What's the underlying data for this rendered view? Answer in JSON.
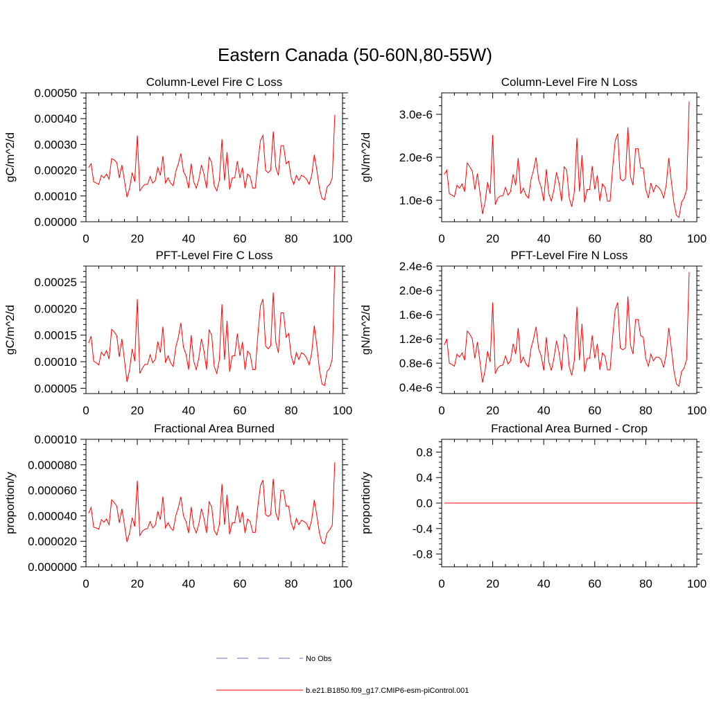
{
  "title": "Eastern Canada (50-60N,80-55W)",
  "legend": {
    "entries": [
      {
        "label": "No Obs",
        "color": "#6b6bc8",
        "style": "dashed"
      },
      {
        "label": "b.e21.B1850.f09_g17.CMIP6-esm-piControl.001",
        "color": "#ff0000",
        "style": "solid"
      }
    ]
  },
  "chart_data": [
    {
      "type": "line",
      "title": "Column-Level Fire C Loss",
      "ylabel": "gC/m^2/d",
      "xlim": [
        0,
        100
      ],
      "ylim": [
        0,
        0.0005
      ],
      "xticks": [
        0,
        20,
        40,
        60,
        80,
        100
      ],
      "yticks": [
        0,
        0.0001,
        0.0002,
        0.0003,
        0.0004,
        0.0005
      ],
      "ytick_labels": [
        "0.00000",
        "0.00010",
        "0.00020",
        "0.00030",
        "0.00040",
        "0.00050"
      ],
      "series": [
        {
          "color": "#ff0000",
          "x_start": 1,
          "values": [
            0.00021,
            0.000225,
            0.000155,
            0.00015,
            0.000145,
            0.00018,
            0.00017,
            0.000185,
            0.000165,
            0.000245,
            0.00024,
            0.00023,
            0.00017,
            0.00022,
            0.00016,
            9.5e-05,
            0.00013,
            0.00019,
            0.000155,
            0.000335,
            0.00012,
            0.000135,
            0.000145,
            0.000145,
            0.000175,
            0.00015,
            0.00016,
            0.00021,
            0.00018,
            0.000255,
            0.00015,
            0.00017,
            0.00015,
            0.00014,
            0.000195,
            0.000225,
            0.000265,
            0.000195,
            0.000175,
            0.00013,
            0.000225,
            0.000155,
            0.00013,
            0.000165,
            0.00022,
            0.000185,
            0.00013,
            0.00025,
            0.00023,
            0.00014,
            0.00012,
            0.00016,
            0.00032,
            0.00016,
            0.00027,
            0.000125,
            0.00017,
            0.00017,
            0.000235,
            0.00017,
            0.00021,
            0.00013,
            0.000185,
            0.000175,
            0.00013,
            0.00013,
            0.00023,
            0.000315,
            0.000335,
            0.0002,
            0.00019,
            0.0002,
            0.00035,
            0.00021,
            0.00018,
            0.000295,
            0.000295,
            0.000225,
            0.000235,
            0.00017,
            0.000145,
            0.00018,
            0.00016,
            0.00018,
            0.000175,
            0.000165,
            0.000145,
            0.00018,
            0.00026,
            0.0002,
            0.00013,
            9e-05,
            8.5e-05,
            0.000135,
            0.000145,
            0.00017,
            0.000415
          ]
        }
      ]
    },
    {
      "type": "line",
      "title": "Column-Level Fire N Loss",
      "ylabel": "gN/m^2/d",
      "xlim": [
        0,
        100
      ],
      "ylim": [
        5e-07,
        3.5e-06
      ],
      "xticks": [
        0,
        20,
        40,
        60,
        80,
        100
      ],
      "yticks": [
        1e-06,
        2e-06,
        3e-06
      ],
      "ytick_labels": [
        "1.0e-6",
        "2.0e-6",
        "3.0e-6"
      ],
      "series": [
        {
          "color": "#ff0000",
          "x_start": 1,
          "values": [
            1.6e-06,
            1.7e-06,
            1.15e-06,
            1.12e-06,
            1.08e-06,
            1.35e-06,
            1.28e-06,
            1.38e-06,
            1.2e-06,
            1.87e-06,
            1.78e-06,
            1.68e-06,
            1.25e-06,
            1.62e-06,
            1.18e-06,
            6.8e-07,
            9.5e-07,
            1.42e-06,
            1.15e-06,
            2.52e-06,
            9e-07,
            1.05e-06,
            1.1e-06,
            1.1e-06,
            1.3e-06,
            1.12e-06,
            1.2e-06,
            1.6e-06,
            1.35e-06,
            1.98e-06,
            1.15e-06,
            1.28e-06,
            1.12e-06,
            1.05e-06,
            1.48e-06,
            1.7e-06,
            2e-06,
            1.48e-06,
            1.3e-06,
            9.8e-07,
            1.72e-06,
            1.15e-06,
            9.8e-07,
            1.25e-06,
            1.65e-06,
            1.4e-06,
            9.8e-07,
            1.78e-06,
            1.7e-06,
            1.05e-06,
            8.5e-07,
            1.2e-06,
            2.45e-06,
            1.2e-06,
            2.05e-06,
            9.5e-07,
            1.25e-06,
            1.25e-06,
            1.8e-06,
            1.25e-06,
            1.58e-06,
            9.8e-07,
            1.38e-06,
            1.3e-06,
            9.8e-07,
            9.8e-07,
            1.75e-06,
            2.38e-06,
            2.55e-06,
            1.5e-06,
            1.45e-06,
            1.5e-06,
            2.7e-06,
            1.55e-06,
            1.35e-06,
            2.2e-06,
            2.2e-06,
            1.75e-06,
            1.75e-06,
            1.25e-06,
            1.05e-06,
            1.4e-06,
            1.2e-06,
            1.35e-06,
            1.3e-06,
            1.22e-06,
            1.05e-06,
            1.35e-06,
            1.98e-06,
            1.45e-06,
            9.5e-07,
            6.5e-07,
            6e-07,
            9.5e-07,
            1.05e-06,
            1.25e-06,
            3.3e-06
          ]
        }
      ]
    },
    {
      "type": "line",
      "title": "PFT-Level Fire C Loss",
      "ylabel": "gC/m^2/d",
      "xlim": [
        0,
        100
      ],
      "ylim": [
        4e-05,
        0.00028
      ],
      "xticks": [
        0,
        20,
        40,
        60,
        80,
        100
      ],
      "yticks": [
        5e-05,
        0.0001,
        0.00015,
        0.0002,
        0.00025
      ],
      "ytick_labels": [
        "0.00005",
        "0.00010",
        "0.00015",
        "0.00020",
        "0.00025"
      ],
      "series": [
        {
          "color": "#ff0000",
          "x_start": 1,
          "values": [
            0.000135,
            0.000148,
            0.000101,
            9.8e-05,
            9.4e-05,
            0.000118,
            0.000111,
            0.000121,
            0.000105,
            0.000161,
            0.000156,
            0.000149,
            0.000109,
            0.000143,
            0.000103,
            6.2e-05,
            8.5e-05,
            0.000124,
            0.000101,
            0.000218,
            7.8e-05,
            8.8e-05,
            9.5e-05,
            9.5e-05,
            0.000113,
            9.8e-05,
            0.000104,
            0.000138,
            0.000117,
            0.000166,
            9.8e-05,
            0.000111,
            9.8e-05,
            9.1e-05,
            0.000127,
            0.000146,
            0.000173,
            0.000127,
            0.000114,
            8.5e-05,
            0.00015,
            0.000101,
            8.5e-05,
            0.000107,
            0.000143,
            0.00012,
            8.5e-05,
            0.00016,
            0.00015,
            9.1e-05,
            7.8e-05,
            0.000104,
            0.000208,
            0.000104,
            0.000177,
            8.1e-05,
            0.000111,
            0.000111,
            0.000153,
            0.000111,
            0.000137,
            8.5e-05,
            0.00012,
            0.000114,
            8.5e-05,
            8.5e-05,
            0.00015,
            0.000205,
            0.000218,
            0.00013,
            0.000124,
            0.00013,
            0.00023,
            0.000137,
            0.000117,
            0.000192,
            0.000192,
            0.000146,
            0.000153,
            0.000111,
            9.4e-05,
            0.000117,
            0.000104,
            0.000117,
            0.000114,
            0.000107,
            9.4e-05,
            0.000117,
            0.000168,
            0.00013,
            8.5e-05,
            5.8e-05,
            5.5e-05,
            8.2e-05,
            8.8e-05,
            0.000105,
            0.00028
          ]
        }
      ]
    },
    {
      "type": "line",
      "title": "PFT-Level Fire N Loss",
      "ylabel": "gN/m^2/d",
      "xlim": [
        0,
        100
      ],
      "ylim": [
        3e-07,
        2.4e-06
      ],
      "xticks": [
        0,
        20,
        40,
        60,
        80,
        100
      ],
      "yticks": [
        4e-07,
        8e-07,
        1.2e-06,
        1.6e-06,
        2e-06,
        2.4e-06
      ],
      "ytick_labels": [
        "0.4e-6",
        "0.8e-6",
        "1.2e-6",
        "1.6e-6",
        "2.0e-6",
        "2.4e-6"
      ],
      "series": [
        {
          "color": "#ff0000",
          "x_start": 1,
          "values": [
            1.1e-06,
            1.2e-06,
            8e-07,
            7.8e-07,
            7.5e-07,
            9.5e-07,
            9e-07,
            9.7e-07,
            8.5e-07,
            1.33e-06,
            1.28e-06,
            1.2e-06,
            8.8e-07,
            1.15e-06,
            8.3e-07,
            4.8e-07,
            6.8e-07,
            1e-06,
            8.2e-07,
            1.8e-06,
            6.3e-07,
            7.2e-07,
            7.6e-07,
            7.7e-07,
            9.2e-07,
            7.9e-07,
            8.4e-07,
            1.12e-06,
            9.5e-07,
            1.38e-06,
            8e-07,
            9e-07,
            7.9e-07,
            7.4e-07,
            1.04e-06,
            1.2e-06,
            1.4e-06,
            1.04e-06,
            9.2e-07,
            6.8e-07,
            1.23e-06,
            8.2e-07,
            6.8e-07,
            8.8e-07,
            1.17e-06,
            9.8e-07,
            6.8e-07,
            1.27e-06,
            1.2e-06,
            7.4e-07,
            6e-07,
            8.5e-07,
            1.73e-06,
            8.5e-07,
            1.45e-06,
            6.6e-07,
            8.8e-07,
            8.8e-07,
            1.26e-06,
            8.8e-07,
            1.12e-06,
            6.9e-07,
            9.7e-07,
            9.2e-07,
            6.9e-07,
            6.9e-07,
            1.23e-06,
            1.68e-06,
            1.8e-06,
            1.05e-06,
            1.02e-06,
            1.05e-06,
            1.9e-06,
            1.1e-06,
            9.5e-07,
            1.52e-06,
            1.52e-06,
            1.25e-06,
            1.23e-06,
            8.8e-07,
            7.5e-07,
            9.5e-07,
            8.4e-07,
            9e-07,
            9e-07,
            8.6e-07,
            7.3e-07,
            9.5e-07,
            1.38e-06,
            1.05e-06,
            6.8e-07,
            4.6e-07,
            4.2e-07,
            6.6e-07,
            7.2e-07,
            8.6e-07,
            2.3e-06
          ]
        }
      ]
    },
    {
      "type": "line",
      "title": "Fractional Area Burned",
      "ylabel": "proportion/y",
      "xlim": [
        0,
        100
      ],
      "ylim": [
        0,
        0.0001
      ],
      "xticks": [
        0,
        20,
        40,
        60,
        80,
        100
      ],
      "yticks": [
        0,
        2e-05,
        4e-05,
        6e-05,
        8e-05,
        0.0001
      ],
      "ytick_labels": [
        "0.000000",
        "0.000020",
        "0.000040",
        "0.000060",
        "0.000080",
        "0.00010"
      ],
      "series": [
        {
          "color": "#ff0000",
          "x_start": 1,
          "values": [
            4.2e-05,
            4.65e-05,
            3.1e-05,
            3.05e-05,
            2.95e-05,
            3.7e-05,
            3.5e-05,
            3.75e-05,
            3.3e-05,
            5.25e-05,
            5.05e-05,
            4.75e-05,
            3.45e-05,
            4.55e-05,
            3.3e-05,
            1.95e-05,
            2.65e-05,
            3.85e-05,
            3.15e-05,
            6.75e-05,
            2.45e-05,
            2.8e-05,
            2.95e-05,
            3e-05,
            3.55e-05,
            3.05e-05,
            3.25e-05,
            4.35e-05,
            3.7e-05,
            5.5e-05,
            3.05e-05,
            3.45e-05,
            3.05e-05,
            2.85e-05,
            4e-05,
            4.65e-05,
            5.5e-05,
            4e-05,
            3.55e-05,
            2.65e-05,
            4.7e-05,
            3.15e-05,
            2.65e-05,
            3.35e-05,
            4.55e-05,
            3.8e-05,
            2.65e-05,
            5.1e-05,
            4.7e-05,
            2.85e-05,
            2.5e-05,
            3.3e-05,
            6.5e-05,
            3.3e-05,
            5.65e-05,
            2.55e-05,
            3.45e-05,
            3.45e-05,
            4.8e-05,
            3.45e-05,
            4.3e-05,
            2.65e-05,
            3.75e-05,
            3.55e-05,
            2.7e-05,
            2.7e-05,
            4.75e-05,
            6.35e-05,
            6.8e-05,
            4.1e-05,
            3.95e-05,
            4.1e-05,
            6.9e-05,
            4.2e-05,
            3.65e-05,
            6e-05,
            6e-05,
            4.75e-05,
            4.75e-05,
            3.45e-05,
            2.9e-05,
            3.8e-05,
            3.3e-05,
            3.65e-05,
            3.55e-05,
            3.4e-05,
            2.9e-05,
            3.7e-05,
            5.25e-05,
            4e-05,
            2.65e-05,
            1.9e-05,
            1.8e-05,
            2.65e-05,
            2.9e-05,
            3.25e-05,
            8.2e-05
          ]
        }
      ]
    },
    {
      "type": "line",
      "title": "Fractional Area Burned - Crop",
      "ylabel": "proportion/y",
      "xlim": [
        0,
        100
      ],
      "ylim": [
        -1,
        1
      ],
      "xticks": [
        0,
        20,
        40,
        60,
        80,
        100
      ],
      "yticks": [
        -0.8,
        -0.4,
        0,
        0.4,
        0.8
      ],
      "ytick_labels": [
        "-0.8",
        "-0.4",
        "0.0",
        "0.4",
        "0.8"
      ],
      "series": [
        {
          "color": "#ff0000",
          "x_start": 1,
          "x_end": 100,
          "constant": 0
        }
      ]
    }
  ]
}
